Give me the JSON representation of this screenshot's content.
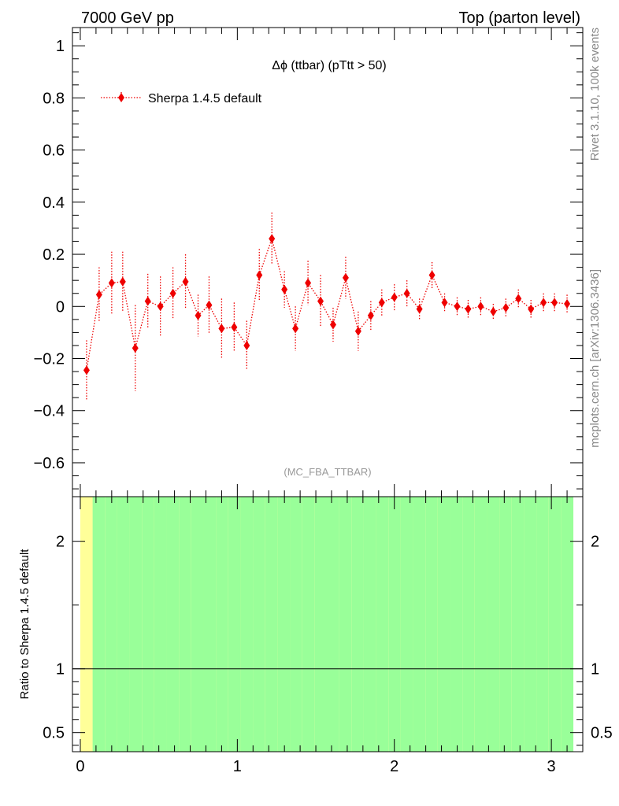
{
  "header": {
    "left": "7000 GeV pp",
    "right": "Top (parton level)"
  },
  "side_labels": {
    "rivet": "Rivet 3.1.10,  100k events",
    "mcplots": "mcplots.cern.ch [arXiv:1306.3436]"
  },
  "watermark": "(MC_FBA_TTBAR)",
  "colors": {
    "series": "#ee0000",
    "band_inner": "#99ff99",
    "band_outer": "#ffff99",
    "axis": "#000000"
  },
  "chart_data": [
    {
      "type": "line",
      "title": "Δϕ (ttbar) (pTtt > 50)",
      "xlabel": "",
      "ylabel": "",
      "xlim": [
        -0.05,
        3.2
      ],
      "ylim": [
        -0.73,
        1.07
      ],
      "yticks": [
        "−0.6",
        "−0.4",
        "−0.2",
        "0",
        "0.2",
        "0.4",
        "0.6",
        "0.8",
        "1"
      ],
      "legend": "top-left",
      "series": [
        {
          "name": "Sherpa 1.4.5 default",
          "style": "dotted line with diamond markers and error bars",
          "x": [
            0.04,
            0.12,
            0.2,
            0.27,
            0.35,
            0.43,
            0.51,
            0.59,
            0.67,
            0.75,
            0.82,
            0.9,
            0.98,
            1.06,
            1.14,
            1.22,
            1.3,
            1.37,
            1.45,
            1.53,
            1.61,
            1.69,
            1.77,
            1.85,
            1.92,
            2.0,
            2.08,
            2.16,
            2.24,
            2.32,
            2.4,
            2.47,
            2.55,
            2.63,
            2.71,
            2.79,
            2.87,
            2.95,
            3.02,
            3.1
          ],
          "y": [
            -0.245,
            0.045,
            0.09,
            0.095,
            -0.16,
            0.02,
            0.0,
            0.05,
            0.095,
            -0.035,
            0.005,
            -0.085,
            -0.08,
            -0.15,
            0.12,
            0.26,
            0.065,
            -0.085,
            0.09,
            0.02,
            -0.07,
            0.11,
            -0.095,
            -0.035,
            0.015,
            0.035,
            0.05,
            -0.01,
            0.12,
            0.015,
            0.0,
            -0.01,
            0.0,
            -0.02,
            -0.005,
            0.03,
            -0.01,
            0.015,
            0.015,
            0.01
          ],
          "yerr": [
            0.115,
            0.105,
            0.12,
            0.115,
            0.165,
            0.105,
            0.115,
            0.1,
            0.105,
            0.08,
            0.11,
            0.115,
            0.095,
            0.095,
            0.1,
            0.1,
            0.07,
            0.085,
            0.085,
            0.1,
            0.065,
            0.08,
            0.075,
            0.055,
            0.05,
            0.05,
            0.05,
            0.04,
            0.05,
            0.035,
            0.035,
            0.035,
            0.035,
            0.03,
            0.035,
            0.035,
            0.035,
            0.035,
            0.035,
            0.035
          ]
        }
      ]
    },
    {
      "type": "area",
      "ylabel": "Ratio to Sherpa 1.4.5 default",
      "xlim": [
        -0.05,
        3.2
      ],
      "ylim": [
        0.35,
        2.35
      ],
      "xticks": [
        "0",
        "1",
        "2",
        "3"
      ],
      "yticks": [
        "0.5",
        "1",
        "2"
      ],
      "reference_line": 1,
      "x_edges": [
        0.0,
        0.0785,
        0.157,
        0.2355,
        0.314,
        0.3925,
        0.471,
        0.5495,
        0.628,
        0.7065,
        0.785,
        0.8635,
        0.942,
        1.0205,
        1.099,
        1.1775,
        1.256,
        1.3345,
        1.413,
        1.4915,
        1.57,
        1.6485,
        1.727,
        1.8055,
        1.884,
        1.9625,
        2.041,
        2.1195,
        2.198,
        2.2765,
        2.355,
        2.4335,
        2.512,
        2.5905,
        2.669,
        2.7475,
        2.826,
        2.9045,
        2.983,
        3.0615,
        3.14
      ],
      "series": [
        {
          "name": "inner band",
          "lower": [
            1.55,
            0.35,
            0.35,
            0.35,
            0.35,
            0.35,
            0.35,
            0.35,
            0.35,
            0.35,
            0.35,
            0.35,
            0.35,
            0.35,
            0.35,
            0.35,
            0.35,
            0.35,
            0.35,
            0.35,
            0.35,
            0.35,
            0.35,
            0.35,
            0.35,
            0.35,
            0.35,
            0.35,
            0.35,
            0.35,
            0.35,
            0.35,
            0.35,
            0.35,
            0.35,
            0.35,
            0.35,
            0.35,
            0.35,
            0.35
          ],
          "upper": [
            1.55,
            2.35,
            2.35,
            2.35,
            2.35,
            2.35,
            2.35,
            2.35,
            2.35,
            2.35,
            2.35,
            2.35,
            2.35,
            2.35,
            2.35,
            2.35,
            2.35,
            2.35,
            2.35,
            2.35,
            2.35,
            2.35,
            2.35,
            2.35,
            2.35,
            2.35,
            2.35,
            2.35,
            2.35,
            2.35,
            2.35,
            2.35,
            2.35,
            2.35,
            2.35,
            2.35,
            2.35,
            2.35,
            2.35,
            2.35
          ]
        },
        {
          "name": "outer band",
          "lower": [
            0.35,
            0.35,
            0.35,
            0.35,
            0.35,
            0.35,
            0.35,
            0.35,
            0.35,
            0.35,
            0.35,
            0.35,
            0.35,
            0.35,
            0.35,
            0.35,
            0.35,
            0.35,
            0.35,
            0.35,
            0.35,
            0.35,
            0.35,
            0.35,
            0.35,
            0.35,
            0.35,
            0.35,
            0.35,
            0.35,
            0.35,
            0.35,
            0.35,
            0.35,
            0.35,
            0.35,
            0.35,
            0.35,
            0.35,
            0.35
          ],
          "upper": [
            2.35,
            2.35,
            2.35,
            2.35,
            2.35,
            2.35,
            2.35,
            2.35,
            2.35,
            2.35,
            2.35,
            2.35,
            2.35,
            2.35,
            2.35,
            2.35,
            2.35,
            2.35,
            2.35,
            2.35,
            2.35,
            2.35,
            2.35,
            2.35,
            2.35,
            2.35,
            2.35,
            2.35,
            2.35,
            2.35,
            2.35,
            2.35,
            2.35,
            2.35,
            2.35,
            2.35,
            2.35,
            2.35,
            2.35,
            2.35
          ]
        }
      ]
    }
  ]
}
